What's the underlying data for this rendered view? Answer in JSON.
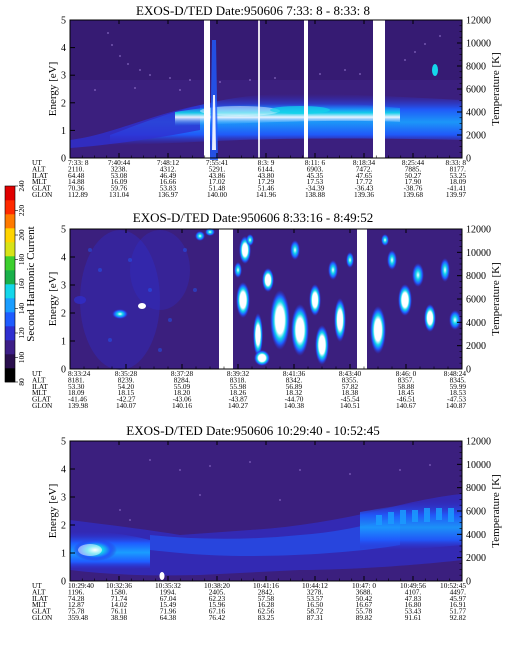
{
  "panels": [
    {
      "title": "EXOS-D/TED   Date:950606  7:33: 8 - 8:33: 8",
      "ylabel": "Energy [eV]",
      "y2label": "Temperature [K]",
      "yticks": [
        "0",
        "1",
        "2",
        "3",
        "4",
        "5"
      ],
      "y2ticks": [
        "0",
        "2000",
        "4000",
        "6000",
        "8000",
        "10000",
        "12000"
      ],
      "row_labels": [
        "UT",
        "ALT",
        "ILAT",
        "MLT",
        "GLAT",
        "GLON"
      ],
      "ephemeris": [
        [
          "7:33: 8",
          "2110.",
          "64.48",
          "14.88",
          "70.36",
          "112.89"
        ],
        [
          "7:40:44",
          "3238.",
          "53.08",
          "16.09",
          "59.76",
          "131.04"
        ],
        [
          "7:48:12",
          "4312.",
          "46.49",
          "16.66",
          "53.83",
          "136.97"
        ],
        [
          "7:55:41",
          "5291.",
          "43.86",
          "17.02",
          "51.48",
          "140.00"
        ],
        [
          "8:3: 9",
          "6144.",
          "43.80",
          "17.29",
          "51.46",
          "141.96"
        ],
        [
          "8:11: 6",
          "6903.",
          "45.35",
          "17.53",
          "-34.39",
          "138.88"
        ],
        [
          "8:18:34",
          "7472.",
          "47.65",
          "17.72",
          "-36.43",
          "139.36"
        ],
        [
          "8:25:44",
          "7885.",
          "50.27",
          "17.90",
          "-38.76",
          "139.68"
        ],
        [
          "8:33: 8",
          "8177.",
          "53.25",
          "18.09",
          "-41.41",
          "139.97"
        ]
      ]
    },
    {
      "title": "EXOS-D/TED   Date:950606  8:33:16 - 8:49:52",
      "ylabel": "Energy [eV]",
      "y2label": "Temperature [K]",
      "yticks": [
        "0",
        "1",
        "2",
        "3",
        "4",
        "5"
      ],
      "y2ticks": [
        "0",
        "2000",
        "4000",
        "6000",
        "8000",
        "10000",
        "12000"
      ],
      "row_labels": [
        "UT",
        "ALT",
        "ILAT",
        "MLT",
        "GLAT",
        "GLON"
      ],
      "ephemeris": [
        [
          "8:33:24",
          "8181.",
          "53.30",
          "18.09",
          "-41.46",
          "139.98"
        ],
        [
          "8:35:28",
          "8239.",
          "54.20",
          "18.15",
          "-42.27",
          "140.07"
        ],
        [
          "8:37:28",
          "8284.",
          "55.09",
          "18.20",
          "-43.06",
          "140.16"
        ],
        [
          "8:39:32",
          "8318.",
          "55.98",
          "18.26",
          "-43.87",
          "140.27"
        ],
        [
          "8:41:36",
          "8342.",
          "56.89",
          "18.32",
          "-44.70",
          "140.38"
        ],
        [
          "8:43:40",
          "8355.",
          "57.82",
          "18.38",
          "-45.54",
          "140.51"
        ],
        [
          "8:46: 0",
          "8357.",
          "58.88",
          "18.45",
          "-46.51",
          "140.67"
        ],
        [
          "8:48:24",
          "8345.",
          "59.99",
          "18.53",
          "-47.53",
          "140.87"
        ]
      ]
    },
    {
      "title": "EXOS-D/TED   Date:950606  10:29:40 - 10:52:45",
      "ylabel": "Energy [eV]",
      "y2label": "Temperature [K]",
      "yticks": [
        "0",
        "1",
        "2",
        "3",
        "4",
        "5"
      ],
      "y2ticks": [
        "0",
        "2000",
        "4000",
        "6000",
        "8000",
        "10000",
        "12000"
      ],
      "row_labels": [
        "UT",
        "ALT",
        "ILAT",
        "MLT",
        "GLAT",
        "GLON"
      ],
      "ephemeris": [
        [
          "10:29:40",
          "1196.",
          "74.28",
          "12.87",
          "75.78",
          "359.48"
        ],
        [
          "10:32:36",
          "1580.",
          "71.74",
          "14.02",
          "76.11",
          "38.98"
        ],
        [
          "10:35:32",
          "1994.",
          "67.04",
          "15.49",
          "71.96",
          "64.38"
        ],
        [
          "10:38:20",
          "2405.",
          "62.23",
          "15.96",
          "67.16",
          "76.42"
        ],
        [
          "10:41:16",
          "2842.",
          "57.58",
          "16.28",
          "62.56",
          "83.25"
        ],
        [
          "10:44:12",
          "3278.",
          "53.57",
          "16.50",
          "58.72",
          "87.31"
        ],
        [
          "10:47: 0",
          "3688.",
          "50.42",
          "16.67",
          "55.78",
          "89.82"
        ],
        [
          "10:49:56",
          "4107.",
          "47.83",
          "16.80",
          "53.43",
          "91.61"
        ],
        [
          "10:52:45",
          "4497.",
          "45.97",
          "16.91",
          "51.77",
          "92.82"
        ]
      ]
    }
  ],
  "colorbar": {
    "label": "Second Harmonic Current",
    "ticks": [
      "80",
      "100",
      "120",
      "140",
      "160",
      "180",
      "200",
      "220",
      "240"
    ],
    "colors": [
      "#000000",
      "#2a0f4d",
      "#3d1e87",
      "#2f2fd0",
      "#1f5cff",
      "#1a9dff",
      "#14d6ea",
      "#19b04a",
      "#3ccf2e",
      "#d8e317",
      "#ffd400",
      "#ff7a00",
      "#ff2a00",
      "#e00000"
    ]
  },
  "chart_data": [
    {
      "type": "heatmap",
      "title": "EXOS-D/TED   Date:950606  7:33: 8 - 8:33: 8",
      "xlabel": "UT",
      "ylabel": "Energy [eV]",
      "y2label": "Temperature [K]",
      "x": [
        "7:33: 8",
        "7:40:44",
        "7:48:12",
        "7:55:41",
        "8:3: 9",
        "8:11: 6",
        "8:18:34",
        "8:25:44",
        "8:33: 8"
      ],
      "ylim": [
        0,
        5
      ],
      "y2lim": [
        0,
        12000
      ],
      "zlim": [
        80,
        240
      ],
      "data_gaps": [
        [
          "7:55:41",
          "7:56:50"
        ],
        [
          "8:10:30",
          "8:11:10"
        ],
        [
          "8:16:50",
          "8:18:00"
        ]
      ]
    },
    {
      "type": "heatmap",
      "title": "EXOS-D/TED   Date:950606  8:33:16 - 8:49:52",
      "xlabel": "UT",
      "ylabel": "Energy [eV]",
      "y2label": "Temperature [K]",
      "x": [
        "8:33:24",
        "8:35:28",
        "8:37:28",
        "8:39:32",
        "8:41:36",
        "8:43:40",
        "8:46: 0",
        "8:48:24"
      ],
      "ylim": [
        0,
        5
      ],
      "y2lim": [
        0,
        12000
      ],
      "zlim": [
        80,
        240
      ],
      "data_gaps": [
        [
          "8:39:00",
          "8:40:30"
        ],
        [
          "8:44:20",
          "8:46:00"
        ]
      ]
    },
    {
      "type": "heatmap",
      "title": "EXOS-D/TED   Date:950606  10:29:40 - 10:52:45",
      "xlabel": "UT",
      "ylabel": "Energy [eV]",
      "y2label": "Temperature [K]",
      "x": [
        "10:29:40",
        "10:32:36",
        "10:35:32",
        "10:38:20",
        "10:41:16",
        "10:44:12",
        "10:47: 0",
        "10:49:56",
        "10:52:45"
      ],
      "ylim": [
        0,
        5
      ],
      "y2lim": [
        0,
        12000
      ],
      "zlim": [
        80,
        240
      ],
      "data_gaps": []
    }
  ]
}
